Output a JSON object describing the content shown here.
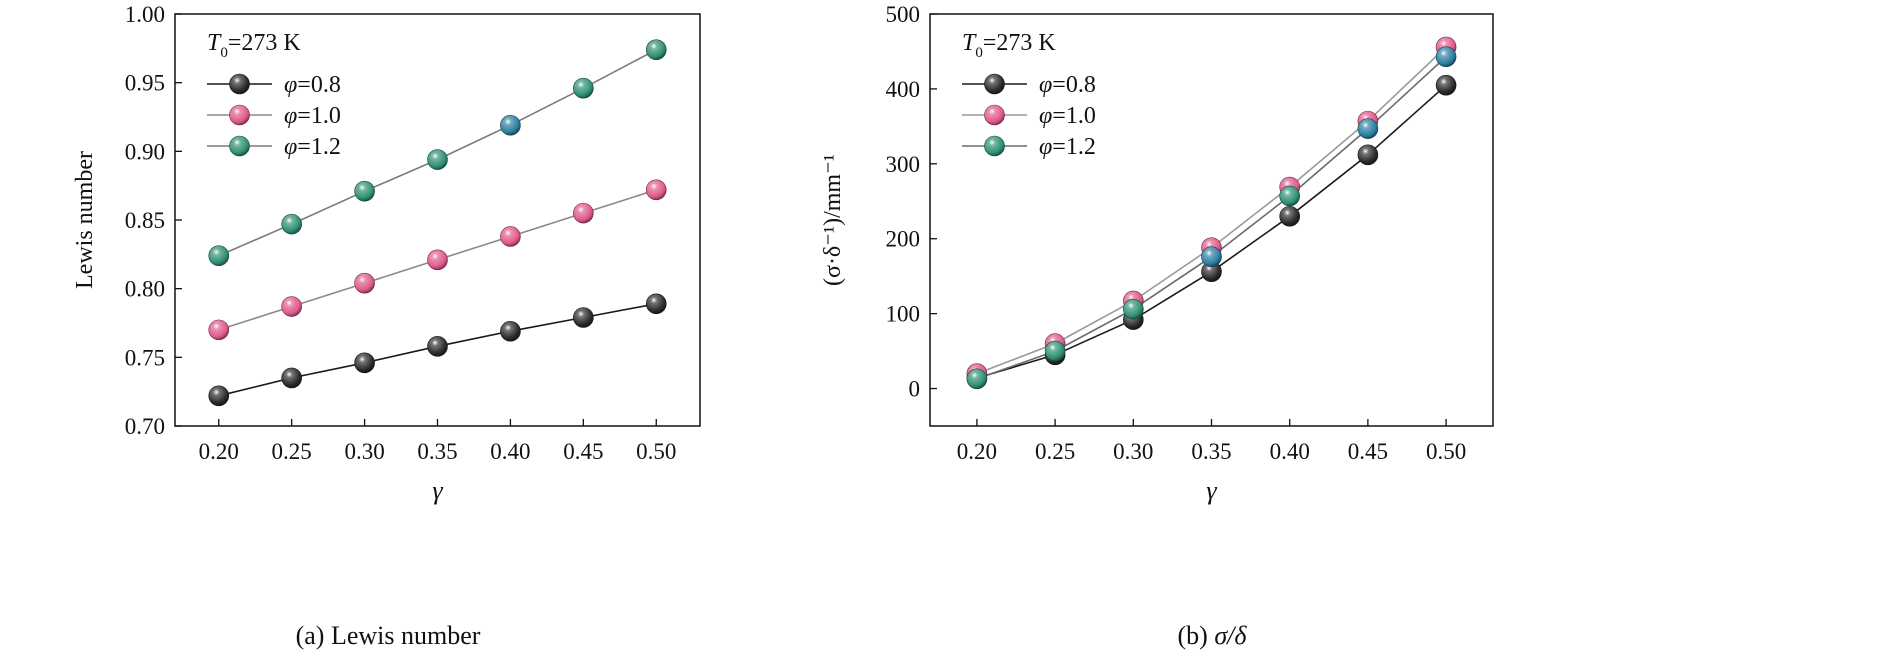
{
  "figure": {
    "captions": [
      {
        "prefix": "(a) ",
        "text": "Lewis number"
      },
      {
        "prefix": "(b) ",
        "text": "σ/δ"
      }
    ]
  },
  "chart_data": [
    {
      "type": "line",
      "panel": "(a)",
      "annotation": {
        "symbol": "T",
        "subscript": "0",
        "value": "=273 K"
      },
      "xlabel": "γ",
      "ylabel": "Lewis number",
      "xlim": [
        0.17,
        0.53
      ],
      "ylim": [
        0.7,
        1.0
      ],
      "xticks": [
        0.2,
        0.25,
        0.3,
        0.35,
        0.4,
        0.45,
        0.5
      ],
      "xtick_labels": [
        "0.20",
        "0.25",
        "0.30",
        "0.35",
        "0.40",
        "0.45",
        "0.50"
      ],
      "yticks": [
        0.7,
        0.75,
        0.8,
        0.85,
        0.9,
        0.95,
        1.0
      ],
      "ytick_labels": [
        "0.70",
        "0.75",
        "0.80",
        "0.85",
        "0.90",
        "0.95",
        "1.00"
      ],
      "legend_position": "top-left",
      "x": [
        0.2,
        0.25,
        0.3,
        0.35,
        0.4,
        0.45,
        0.5
      ],
      "series": [
        {
          "name": "φ=0.8",
          "symbol": "φ",
          "value": "=0.8",
          "color": "#2a2a2a",
          "line_color": "#1a1a1a",
          "values": [
            0.722,
            0.735,
            0.746,
            0.758,
            0.769,
            0.779,
            0.789
          ]
        },
        {
          "name": "φ=1.0",
          "symbol": "φ",
          "value": "=1.0",
          "color": "#e0588a",
          "line_color": "#8a8a8a",
          "values": [
            0.77,
            0.787,
            0.804,
            0.821,
            0.838,
            0.855,
            0.872
          ]
        },
        {
          "name": "φ=1.2",
          "symbol": "φ",
          "value": "=1.2",
          "color": "#2e8f74",
          "line_color": "#7a7a7a",
          "marker_colors": [
            "#2e8f74",
            "#2e8f74",
            "#2e8f74",
            "#2e8f74",
            "#2a7ea0",
            "#2e8f74",
            "#2e8f74"
          ],
          "values": [
            0.824,
            0.847,
            0.871,
            0.894,
            0.919,
            0.946,
            0.974
          ]
        }
      ]
    },
    {
      "type": "line",
      "panel": "(b)",
      "annotation": {
        "symbol": "T",
        "subscript": "0",
        "value": "=273 K"
      },
      "xlabel": "γ",
      "ylabel": "(σ·δ⁻¹)/mm⁻¹",
      "xlim": [
        0.17,
        0.53
      ],
      "ylim": [
        -50,
        500
      ],
      "xticks": [
        0.2,
        0.25,
        0.3,
        0.35,
        0.4,
        0.45,
        0.5
      ],
      "xtick_labels": [
        "0.20",
        "0.25",
        "0.30",
        "0.35",
        "0.40",
        "0.45",
        "0.50"
      ],
      "yticks": [
        0,
        100,
        200,
        300,
        400,
        500
      ],
      "ytick_labels": [
        "0",
        "100",
        "200",
        "300",
        "400",
        "500"
      ],
      "legend_position": "top-left",
      "x": [
        0.2,
        0.25,
        0.3,
        0.35,
        0.4,
        0.45,
        0.5
      ],
      "series": [
        {
          "name": "φ=0.8",
          "symbol": "φ",
          "value": "=0.8",
          "color": "#2a2a2a",
          "line_color": "#1a1a1a",
          "values": [
            14,
            45,
            92,
            156,
            230,
            312,
            405
          ]
        },
        {
          "name": "φ=1.0",
          "symbol": "φ",
          "value": "=1.0",
          "color": "#e0588a",
          "line_color": "#9a9a9a",
          "values": [
            20,
            60,
            117,
            188,
            269,
            357,
            456
          ]
        },
        {
          "name": "φ=1.2",
          "symbol": "φ",
          "value": "=1.2",
          "color": "#2e8f74",
          "line_color": "#6a6a6a",
          "marker_colors": [
            "#2e8f74",
            "#2e8f74",
            "#2e8f74",
            "#2a7ea0",
            "#2e8f74",
            "#2a7ea0",
            "#2a7ea0"
          ],
          "values": [
            13,
            50,
            106,
            176,
            257,
            347,
            443
          ]
        }
      ]
    }
  ]
}
